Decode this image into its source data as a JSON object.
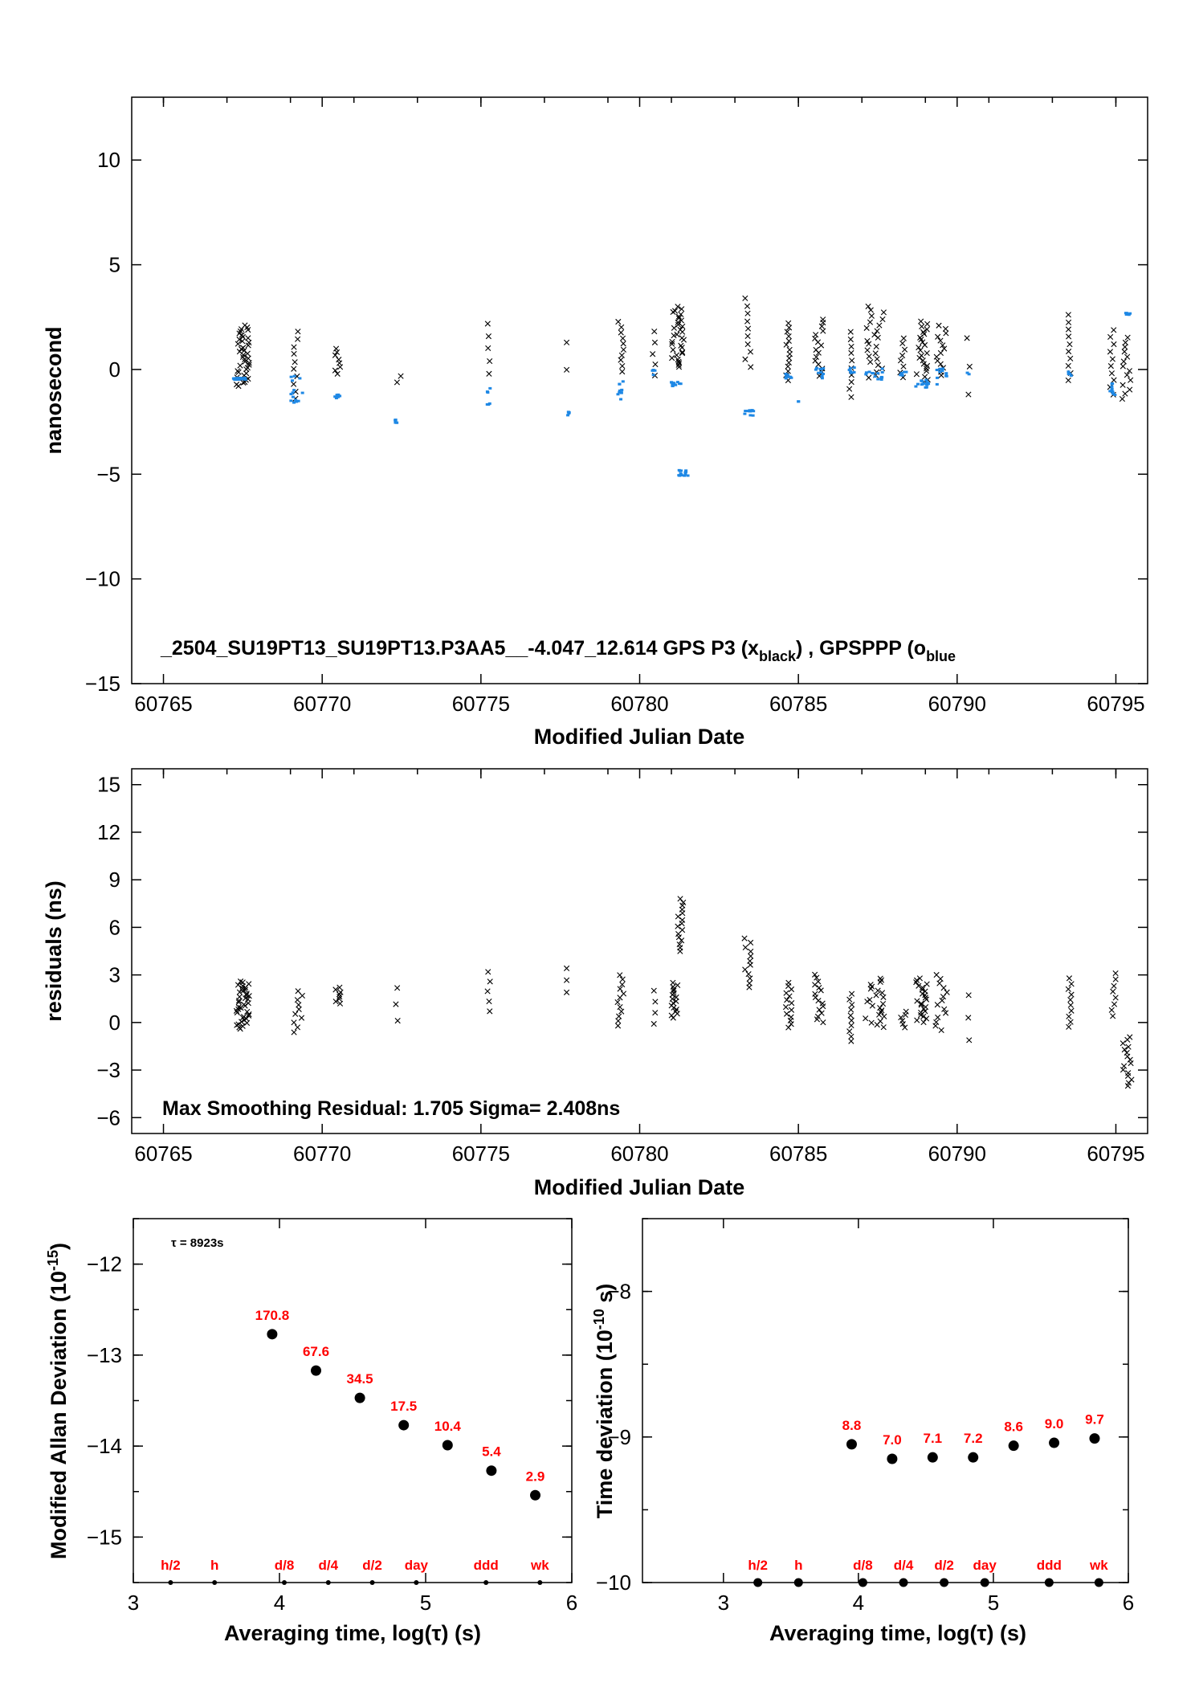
{
  "chart_data": [
    {
      "type": "scatter",
      "title": "_2504_SU19PT13_SU19PT13.P3AA5__-4.047_12.614     GPS P3 (x",
      "title_sub1": "black",
      "title_mid": ") ,  GPSPPP (o",
      "title_sub2": "blue",
      "xlabel": "Modified Julian Date",
      "ylabel": "nanosecond",
      "xlim": [
        60764,
        60796
      ],
      "ylim": [
        -15,
        13
      ],
      "xticks": [
        60765,
        60770,
        60775,
        60780,
        60785,
        60790,
        60795
      ],
      "yticks": [
        -15,
        -10,
        -5,
        0,
        5,
        10
      ],
      "colors": {
        "p3": "#000000",
        "ppp": "#1e88e5"
      },
      "series": [
        {
          "name": "GPS P3",
          "marker": "x",
          "clusters": [
            {
              "x0": 60767.3,
              "x1": 60767.7,
              "ymin": -0.8,
              "ymax": 2.1,
              "n": 40
            },
            {
              "x0": 60769.1,
              "x1": 60769.3,
              "ymin": -1.4,
              "ymax": 1.8,
              "n": 10
            },
            {
              "x0": 60770.4,
              "x1": 60770.6,
              "ymin": -0.2,
              "ymax": 1.0,
              "n": 8
            },
            {
              "x0": 60772.3,
              "x1": 60772.5,
              "ymin": -0.6,
              "ymax": -0.3,
              "n": 2
            },
            {
              "x0": 60775.2,
              "x1": 60775.3,
              "ymin": -0.2,
              "ymax": 2.2,
              "n": 5
            },
            {
              "x0": 60777.7,
              "x1": 60777.7,
              "ymin": 0.0,
              "ymax": 1.3,
              "n": 2
            },
            {
              "x0": 60779.3,
              "x1": 60779.5,
              "ymin": -0.1,
              "ymax": 2.3,
              "n": 10
            },
            {
              "x0": 60780.4,
              "x1": 60780.5,
              "ymin": -0.3,
              "ymax": 1.8,
              "n": 5
            },
            {
              "x0": 60781.0,
              "x1": 60781.4,
              "ymin": 0.1,
              "ymax": 3.0,
              "n": 32
            },
            {
              "x0": 60783.3,
              "x1": 60783.5,
              "ymin": 0.1,
              "ymax": 3.4,
              "n": 10
            },
            {
              "x0": 60784.6,
              "x1": 60784.8,
              "ymin": -0.5,
              "ymax": 2.2,
              "n": 14
            },
            {
              "x0": 60785.5,
              "x1": 60785.8,
              "ymin": -0.3,
              "ymax": 2.4,
              "n": 16
            },
            {
              "x0": 60786.6,
              "x1": 60786.7,
              "ymin": -1.3,
              "ymax": 1.8,
              "n": 10
            },
            {
              "x0": 60787.1,
              "x1": 60787.7,
              "ymin": -0.4,
              "ymax": 3.0,
              "n": 24
            },
            {
              "x0": 60788.2,
              "x1": 60788.4,
              "ymin": -0.4,
              "ymax": 1.5,
              "n": 8
            },
            {
              "x0": 60788.7,
              "x1": 60789.1,
              "ymin": -0.6,
              "ymax": 2.3,
              "n": 24
            },
            {
              "x0": 60789.3,
              "x1": 60789.7,
              "ymin": -0.3,
              "ymax": 2.1,
              "n": 14
            },
            {
              "x0": 60790.3,
              "x1": 60790.4,
              "ymin": -1.2,
              "ymax": 1.5,
              "n": 3
            },
            {
              "x0": 60793.5,
              "x1": 60793.6,
              "ymin": -0.5,
              "ymax": 2.6,
              "n": 10
            },
            {
              "x0": 60794.8,
              "x1": 60795.0,
              "ymin": -1.2,
              "ymax": 1.9,
              "n": 10
            },
            {
              "x0": 60795.2,
              "x1": 60795.5,
              "ymin": -1.4,
              "ymax": 1.5,
              "n": 14
            }
          ]
        },
        {
          "name": "GPSPPP",
          "marker": "o",
          "clusters": [
            {
              "x0": 60767.2,
              "x1": 60767.6,
              "ymin": -0.5,
              "ymax": -0.4,
              "n": 26
            },
            {
              "x0": 60769.0,
              "x1": 60769.4,
              "ymin": -1.6,
              "ymax": -0.2,
              "n": 14
            },
            {
              "x0": 60770.4,
              "x1": 60770.6,
              "ymin": -1.4,
              "ymax": -1.2,
              "n": 8
            },
            {
              "x0": 60772.3,
              "x1": 60772.4,
              "ymin": -2.6,
              "ymax": -2.4,
              "n": 6
            },
            {
              "x0": 60775.2,
              "x1": 60775.3,
              "ymin": -1.8,
              "ymax": -0.8,
              "n": 6
            },
            {
              "x0": 60777.7,
              "x1": 60777.8,
              "ymin": -2.3,
              "ymax": -2.0,
              "n": 4
            },
            {
              "x0": 60779.3,
              "x1": 60779.5,
              "ymin": -1.6,
              "ymax": -0.5,
              "n": 10
            },
            {
              "x0": 60780.4,
              "x1": 60780.5,
              "ymin": -0.5,
              "ymax": 0.1,
              "n": 4
            },
            {
              "x0": 60781.0,
              "x1": 60781.3,
              "ymin": -0.8,
              "ymax": -0.6,
              "n": 12
            },
            {
              "x0": 60781.2,
              "x1": 60781.6,
              "ymin": -5.1,
              "ymax": -4.8,
              "n": 14
            },
            {
              "x0": 60783.3,
              "x1": 60783.6,
              "ymin": -2.2,
              "ymax": -1.9,
              "n": 10
            },
            {
              "x0": 60784.6,
              "x1": 60784.8,
              "ymin": -0.5,
              "ymax": -0.2,
              "n": 8
            },
            {
              "x0": 60785.0,
              "x1": 60785.1,
              "ymin": -1.6,
              "ymax": -1.5,
              "n": 2
            },
            {
              "x0": 60785.5,
              "x1": 60785.8,
              "ymin": -0.6,
              "ymax": 0.1,
              "n": 10
            },
            {
              "x0": 60786.6,
              "x1": 60786.8,
              "ymin": -0.2,
              "ymax": 0.1,
              "n": 6
            },
            {
              "x0": 60787.1,
              "x1": 60787.7,
              "ymin": -0.5,
              "ymax": 0.1,
              "n": 14
            },
            {
              "x0": 60788.2,
              "x1": 60788.4,
              "ymin": -0.3,
              "ymax": 0.0,
              "n": 6
            },
            {
              "x0": 60788.7,
              "x1": 60789.1,
              "ymin": -0.9,
              "ymax": -0.5,
              "n": 16
            },
            {
              "x0": 60789.3,
              "x1": 60789.7,
              "ymin": -0.9,
              "ymax": 0.2,
              "n": 10
            },
            {
              "x0": 60790.3,
              "x1": 60790.4,
              "ymin": -0.3,
              "ymax": -0.1,
              "n": 2
            },
            {
              "x0": 60793.5,
              "x1": 60793.6,
              "ymin": -0.3,
              "ymax": -0.1,
              "n": 4
            },
            {
              "x0": 60794.8,
              "x1": 60795.0,
              "ymin": -1.3,
              "ymax": -0.6,
              "n": 10
            },
            {
              "x0": 60795.3,
              "x1": 60795.5,
              "ymin": 2.6,
              "ymax": 2.7,
              "n": 6
            }
          ]
        }
      ]
    },
    {
      "type": "scatter",
      "xlabel": "Modified Julian Date",
      "ylabel": "residuals (ns)",
      "xlim": [
        60764,
        60796
      ],
      "ylim": [
        -7,
        16
      ],
      "xticks": [
        60765,
        60770,
        60775,
        60780,
        60785,
        60790,
        60795
      ],
      "yticks": [
        -6,
        -3,
        0,
        3,
        6,
        9,
        12,
        15
      ],
      "annotation": "Max Smoothing Residual: 1.705  Sigma= 2.408ns",
      "series": [
        {
          "marker": "x",
          "clusters": [
            {
              "x0": 60767.3,
              "x1": 60767.7,
              "ymin": -0.4,
              "ymax": 2.6,
              "n": 40
            },
            {
              "x0": 60769.1,
              "x1": 60769.4,
              "ymin": -0.6,
              "ymax": 2.0,
              "n": 10
            },
            {
              "x0": 60770.4,
              "x1": 60770.6,
              "ymin": 1.2,
              "ymax": 2.2,
              "n": 8
            },
            {
              "x0": 60772.3,
              "x1": 60772.4,
              "ymin": 0.1,
              "ymax": 2.2,
              "n": 3
            },
            {
              "x0": 60775.2,
              "x1": 60775.3,
              "ymin": 0.7,
              "ymax": 3.2,
              "n": 5
            },
            {
              "x0": 60777.7,
              "x1": 60777.7,
              "ymin": 1.9,
              "ymax": 3.4,
              "n": 3
            },
            {
              "x0": 60779.3,
              "x1": 60779.5,
              "ymin": -0.2,
              "ymax": 3.0,
              "n": 12
            },
            {
              "x0": 60780.4,
              "x1": 60780.5,
              "ymin": -0.1,
              "ymax": 2.0,
              "n": 4
            },
            {
              "x0": 60781.0,
              "x1": 60781.2,
              "ymin": 0.3,
              "ymax": 2.5,
              "n": 18
            },
            {
              "x0": 60781.2,
              "x1": 60781.4,
              "ymin": 4.5,
              "ymax": 7.8,
              "n": 16
            },
            {
              "x0": 60783.3,
              "x1": 60783.5,
              "ymin": 2.2,
              "ymax": 5.3,
              "n": 12
            },
            {
              "x0": 60784.6,
              "x1": 60784.8,
              "ymin": -0.3,
              "ymax": 2.5,
              "n": 14
            },
            {
              "x0": 60785.5,
              "x1": 60785.8,
              "ymin": 0.0,
              "ymax": 3.0,
              "n": 16
            },
            {
              "x0": 60786.6,
              "x1": 60786.7,
              "ymin": -1.2,
              "ymax": 1.8,
              "n": 10
            },
            {
              "x0": 60787.1,
              "x1": 60787.7,
              "ymin": -0.3,
              "ymax": 2.8,
              "n": 24
            },
            {
              "x0": 60788.2,
              "x1": 60788.4,
              "ymin": -0.3,
              "ymax": 0.7,
              "n": 6
            },
            {
              "x0": 60788.7,
              "x1": 60789.1,
              "ymin": 0.0,
              "ymax": 2.8,
              "n": 24
            },
            {
              "x0": 60789.3,
              "x1": 60789.7,
              "ymin": -0.5,
              "ymax": 3.0,
              "n": 14
            },
            {
              "x0": 60790.3,
              "x1": 60790.4,
              "ymin": -1.1,
              "ymax": 1.7,
              "n": 3
            },
            {
              "x0": 60793.5,
              "x1": 60793.6,
              "ymin": -0.3,
              "ymax": 2.8,
              "n": 10
            },
            {
              "x0": 60794.8,
              "x1": 60795.0,
              "ymin": 0.4,
              "ymax": 3.1,
              "n": 8
            },
            {
              "x0": 60795.2,
              "x1": 60795.5,
              "ymin": -4.0,
              "ymax": -0.9,
              "n": 16
            }
          ]
        }
      ]
    },
    {
      "type": "scatter",
      "xlabel": "Averaging time, log(τ) (s)",
      "ylabel": "Modified Allan Deviation (10",
      "ylabel_sup": "-15",
      "ylabel_end": ")",
      "xlim": [
        3,
        6
      ],
      "ylim": [
        -15.5,
        -11.5
      ],
      "xticks": [
        3,
        4,
        5,
        6
      ],
      "yticks": [
        -15,
        -14,
        -13,
        -12
      ],
      "annotation": "τ = 8923s",
      "x": [
        3.95,
        4.25,
        4.55,
        4.85,
        5.15,
        5.45,
        5.75
      ],
      "y": [
        -12.77,
        -13.17,
        -13.47,
        -13.77,
        -13.99,
        -14.27,
        -14.54
      ],
      "point_labels": [
        "170.8",
        "67.6",
        "34.5",
        "17.5",
        "10.4",
        "5.4",
        "2.9"
      ],
      "reference_points": [
        {
          "label": "h/2",
          "x": 3.255
        },
        {
          "label": "h",
          "x": 3.556
        },
        {
          "label": "d/8",
          "x": 4.033
        },
        {
          "label": "d/4",
          "x": 4.334
        },
        {
          "label": "d/2",
          "x": 4.635
        },
        {
          "label": "day",
          "x": 4.936
        },
        {
          "label": "ddd",
          "x": 5.413
        },
        {
          "label": "wk",
          "x": 5.782
        }
      ]
    },
    {
      "type": "scatter",
      "xlabel": "Averaging time, log(τ) (s)",
      "ylabel": "Time deviation (10",
      "ylabel_sup": "-10",
      "ylabel_end": " s)",
      "xlim": [
        2.4,
        6.0
      ],
      "ylim": [
        -10,
        -7.5
      ],
      "xticks": [
        3,
        4,
        5,
        6
      ],
      "yticks": [
        -10,
        -9,
        -8
      ],
      "x": [
        3.95,
        4.25,
        4.55,
        4.85,
        5.15,
        5.45,
        5.75
      ],
      "y": [
        -9.05,
        -9.15,
        -9.14,
        -9.14,
        -9.06,
        -9.04,
        -9.01
      ],
      "point_labels": [
        "8.8",
        "7.0",
        "7.1",
        "7.2",
        "8.6",
        "9.0",
        "9.7"
      ],
      "reference_points": [
        {
          "label": "h/2",
          "x": 3.255
        },
        {
          "label": "h",
          "x": 3.556
        },
        {
          "label": "d/8",
          "x": 4.033
        },
        {
          "label": "d/4",
          "x": 4.334
        },
        {
          "label": "d/2",
          "x": 4.635
        },
        {
          "label": "day",
          "x": 4.936
        },
        {
          "label": "ddd",
          "x": 5.413
        },
        {
          "label": "wk",
          "x": 5.782
        }
      ]
    }
  ]
}
